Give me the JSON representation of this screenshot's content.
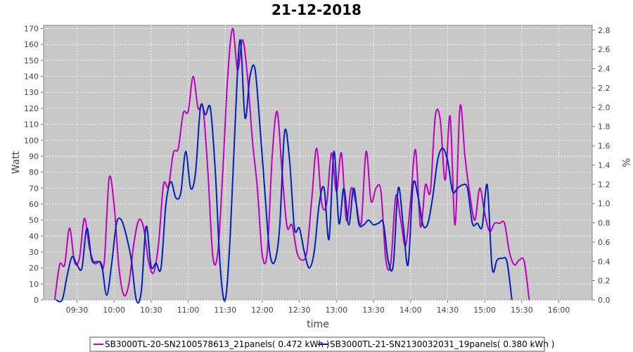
{
  "chart_data": {
    "type": "line",
    "title": "21-12-2018",
    "xlabel": "time",
    "ylabel": "Watt",
    "y2label": "%",
    "xlim": [
      "09:03",
      "16:27"
    ],
    "ylim": [
      0,
      172
    ],
    "y2lim": [
      0,
      2.85
    ],
    "yticks": [
      0,
      10,
      20,
      30,
      40,
      50,
      60,
      70,
      80,
      90,
      100,
      110,
      120,
      130,
      140,
      150,
      160,
      170
    ],
    "y2ticks": [
      "0.0",
      "0.2",
      "0.4",
      "0.6",
      "0.8",
      "1.0",
      "1.2",
      "1.4",
      "1.6",
      "1.8",
      "2.0",
      "2.2",
      "2.4",
      "2.6",
      "2.8"
    ],
    "xticks": [
      "09:30",
      "10:00",
      "10:30",
      "11:00",
      "11:30",
      "12:00",
      "12:30",
      "13:00",
      "13:30",
      "14:00",
      "14:30",
      "15:00",
      "15:30",
      "16:00"
    ],
    "grid": true,
    "legend_position": "bottom",
    "series": [
      {
        "name": "SB3000TL-20-SN2100578613_21panels( 0.472 kWh )",
        "color": "#c000c0",
        "points": [
          [
            "09:12",
            0
          ],
          [
            "09:16",
            22
          ],
          [
            "09:20",
            22
          ],
          [
            "09:24",
            45
          ],
          [
            "09:28",
            24
          ],
          [
            "09:32",
            26
          ],
          [
            "09:36",
            51
          ],
          [
            "09:40",
            33
          ],
          [
            "09:44",
            23
          ],
          [
            "09:48",
            24
          ],
          [
            "09:52",
            23
          ],
          [
            "09:56",
            76
          ],
          [
            "10:00",
            60
          ],
          [
            "10:04",
            20
          ],
          [
            "10:08",
            3
          ],
          [
            "10:12",
            10
          ],
          [
            "10:16",
            35
          ],
          [
            "10:20",
            50
          ],
          [
            "10:24",
            45
          ],
          [
            "10:28",
            24
          ],
          [
            "10:32",
            17
          ],
          [
            "10:36",
            35
          ],
          [
            "10:40",
            72
          ],
          [
            "10:44",
            71
          ],
          [
            "10:48",
            92
          ],
          [
            "10:52",
            95
          ],
          [
            "10:56",
            117
          ],
          [
            "11:00",
            118
          ],
          [
            "11:04",
            140
          ],
          [
            "11:08",
            120
          ],
          [
            "11:12",
            120
          ],
          [
            "11:16",
            80
          ],
          [
            "11:20",
            27
          ],
          [
            "11:24",
            30
          ],
          [
            "11:28",
            80
          ],
          [
            "11:32",
            140
          ],
          [
            "11:36",
            170
          ],
          [
            "11:40",
            144
          ],
          [
            "11:44",
            163
          ],
          [
            "11:48",
            140
          ],
          [
            "11:52",
            100
          ],
          [
            "11:56",
            70
          ],
          [
            "12:00",
            28
          ],
          [
            "12:04",
            30
          ],
          [
            "12:08",
            90
          ],
          [
            "12:12",
            118
          ],
          [
            "12:16",
            80
          ],
          [
            "12:20",
            46
          ],
          [
            "12:24",
            47
          ],
          [
            "12:28",
            30
          ],
          [
            "12:32",
            25
          ],
          [
            "12:36",
            30
          ],
          [
            "12:40",
            63
          ],
          [
            "12:44",
            95
          ],
          [
            "12:48",
            61
          ],
          [
            "12:52",
            60
          ],
          [
            "12:56",
            92
          ],
          [
            "13:00",
            68
          ],
          [
            "13:04",
            92
          ],
          [
            "13:08",
            50
          ],
          [
            "13:12",
            70
          ],
          [
            "13:16",
            60
          ],
          [
            "13:20",
            48
          ],
          [
            "13:24",
            93
          ],
          [
            "13:28",
            62
          ],
          [
            "13:32",
            70
          ],
          [
            "13:36",
            68
          ],
          [
            "13:40",
            25
          ],
          [
            "13:44",
            23
          ],
          [
            "13:48",
            65
          ],
          [
            "13:52",
            50
          ],
          [
            "13:56",
            34
          ],
          [
            "14:00",
            62
          ],
          [
            "14:04",
            94
          ],
          [
            "14:08",
            46
          ],
          [
            "14:12",
            72
          ],
          [
            "14:16",
            68
          ],
          [
            "14:20",
            115
          ],
          [
            "14:24",
            113
          ],
          [
            "14:28",
            75
          ],
          [
            "14:32",
            115
          ],
          [
            "14:36",
            47
          ],
          [
            "14:40",
            121
          ],
          [
            "14:44",
            90
          ],
          [
            "14:48",
            66
          ],
          [
            "14:52",
            50
          ],
          [
            "14:56",
            70
          ],
          [
            "15:00",
            54
          ],
          [
            "15:04",
            43
          ],
          [
            "15:08",
            48
          ],
          [
            "15:12",
            48
          ],
          [
            "15:16",
            48
          ],
          [
            "15:20",
            30
          ],
          [
            "15:24",
            22
          ],
          [
            "15:28",
            25
          ],
          [
            "15:32",
            24
          ],
          [
            "15:36",
            0
          ]
        ]
      },
      {
        "name": "SB3000TL-21-SN2130032031_19panels( 0.380 kWh )",
        "color": "#0020c0",
        "points": [
          [
            "09:13",
            0
          ],
          [
            "09:18",
            0
          ],
          [
            "09:22",
            15
          ],
          [
            "09:26",
            27
          ],
          [
            "09:30",
            22
          ],
          [
            "09:34",
            20
          ],
          [
            "09:38",
            45
          ],
          [
            "09:42",
            25
          ],
          [
            "09:46",
            24
          ],
          [
            "09:50",
            22
          ],
          [
            "09:54",
            3
          ],
          [
            "09:58",
            22
          ],
          [
            "10:02",
            48
          ],
          [
            "10:06",
            50
          ],
          [
            "10:10",
            40
          ],
          [
            "10:14",
            25
          ],
          [
            "10:18",
            0
          ],
          [
            "10:22",
            5
          ],
          [
            "10:26",
            46
          ],
          [
            "10:30",
            21
          ],
          [
            "10:34",
            23
          ],
          [
            "10:38",
            20
          ],
          [
            "10:42",
            60
          ],
          [
            "10:46",
            74
          ],
          [
            "10:50",
            64
          ],
          [
            "10:54",
            67
          ],
          [
            "10:58",
            93
          ],
          [
            "11:02",
            70
          ],
          [
            "11:06",
            80
          ],
          [
            "11:10",
            121
          ],
          [
            "11:14",
            116
          ],
          [
            "11:18",
            120
          ],
          [
            "11:22",
            80
          ],
          [
            "11:26",
            20
          ],
          [
            "11:30",
            0
          ],
          [
            "11:34",
            40
          ],
          [
            "11:38",
            110
          ],
          [
            "11:42",
            163
          ],
          [
            "11:46",
            114
          ],
          [
            "11:50",
            140
          ],
          [
            "11:54",
            145
          ],
          [
            "11:58",
            110
          ],
          [
            "12:02",
            68
          ],
          [
            "12:06",
            30
          ],
          [
            "12:10",
            24
          ],
          [
            "12:14",
            45
          ],
          [
            "12:18",
            105
          ],
          [
            "12:22",
            88
          ],
          [
            "12:26",
            45
          ],
          [
            "12:30",
            45
          ],
          [
            "12:34",
            30
          ],
          [
            "12:38",
            20
          ],
          [
            "12:42",
            30
          ],
          [
            "12:46",
            60
          ],
          [
            "12:50",
            70
          ],
          [
            "12:54",
            38
          ],
          [
            "12:58",
            93
          ],
          [
            "13:02",
            48
          ],
          [
            "13:06",
            70
          ],
          [
            "13:10",
            47
          ],
          [
            "13:14",
            70
          ],
          [
            "13:18",
            48
          ],
          [
            "13:22",
            47
          ],
          [
            "13:26",
            50
          ],
          [
            "13:30",
            47
          ],
          [
            "13:34",
            48
          ],
          [
            "13:38",
            48
          ],
          [
            "13:42",
            24
          ],
          [
            "13:46",
            22
          ],
          [
            "13:50",
            70
          ],
          [
            "13:54",
            47
          ],
          [
            "13:58",
            22
          ],
          [
            "14:02",
            72
          ],
          [
            "14:06",
            65
          ],
          [
            "14:10",
            47
          ],
          [
            "14:14",
            48
          ],
          [
            "14:18",
            65
          ],
          [
            "14:22",
            88
          ],
          [
            "14:26",
            95
          ],
          [
            "14:30",
            87
          ],
          [
            "14:34",
            68
          ],
          [
            "14:38",
            70
          ],
          [
            "14:42",
            72
          ],
          [
            "14:46",
            70
          ],
          [
            "14:50",
            48
          ],
          [
            "14:54",
            48
          ],
          [
            "14:58",
            46
          ],
          [
            "15:02",
            72
          ],
          [
            "15:06",
            20
          ],
          [
            "15:10",
            25
          ],
          [
            "15:14",
            26
          ],
          [
            "15:18",
            24
          ],
          [
            "15:22",
            0
          ]
        ]
      }
    ]
  }
}
